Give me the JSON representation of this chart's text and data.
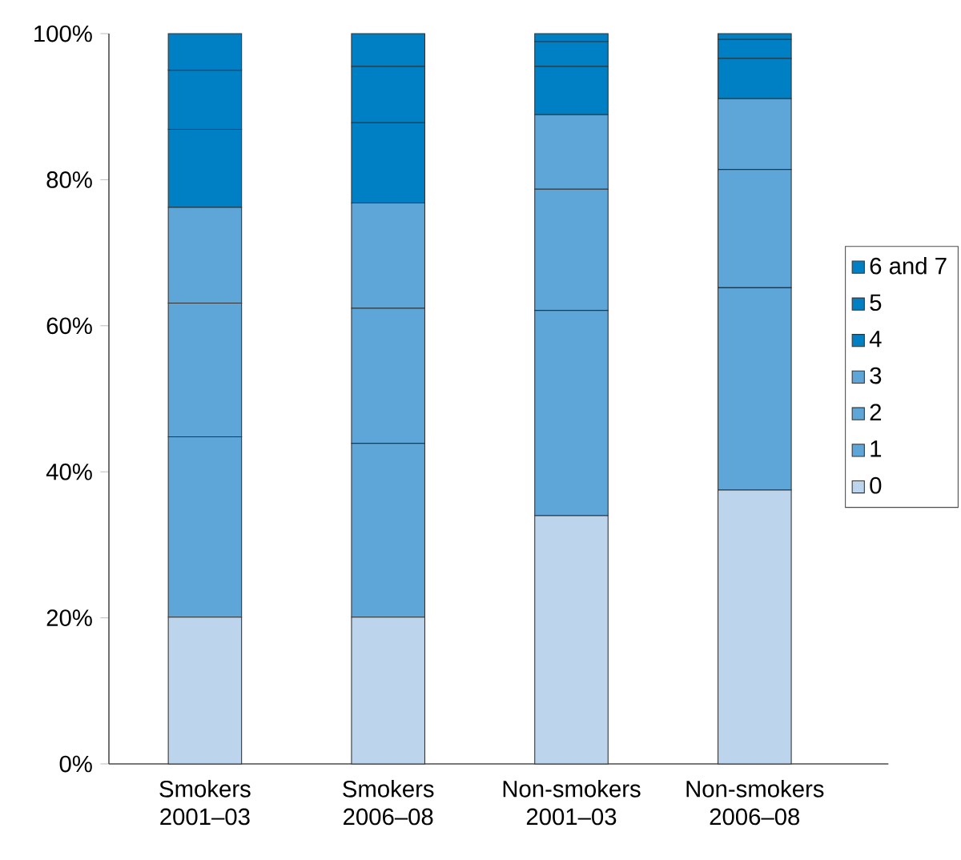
{
  "chart_data": {
    "type": "bar",
    "stacked": true,
    "categories": [
      "Smokers 2001–03",
      "Smokers 2006–08",
      "Non-smokers 2001–03",
      "Non-smokers 2006–08"
    ],
    "series": [
      {
        "name": "0",
        "color": "#bcd5ec",
        "values": [
          20.1,
          20.1,
          34.0,
          37.5
        ]
      },
      {
        "name": "1",
        "color": "#5ea5d8",
        "values": [
          24.7,
          23.8,
          28.1,
          27.7
        ]
      },
      {
        "name": "2",
        "color": "#5ea5d8",
        "values": [
          18.3,
          18.5,
          16.6,
          16.2
        ]
      },
      {
        "name": "3",
        "color": "#5ea5d8",
        "values": [
          13.1,
          14.4,
          10.2,
          9.7
        ]
      },
      {
        "name": "4",
        "color": "#0080c4",
        "values": [
          10.7,
          11.0,
          6.6,
          5.5
        ]
      },
      {
        "name": "5",
        "color": "#0080c4",
        "values": [
          8.1,
          7.7,
          3.4,
          2.6
        ]
      },
      {
        "name": "6 and 7",
        "color": "#0080c4",
        "values": [
          5.0,
          4.5,
          1.1,
          0.8
        ]
      }
    ],
    "ylim": [
      0,
      100
    ],
    "yticks": [
      {
        "value": 0,
        "label": "0%"
      },
      {
        "value": 20,
        "label": "20%"
      },
      {
        "value": 40,
        "label": "40%"
      },
      {
        "value": 60,
        "label": "60%"
      },
      {
        "value": 80,
        "label": "80%"
      },
      {
        "value": 100,
        "label": "100%"
      }
    ],
    "grid": false,
    "legend": "right"
  }
}
